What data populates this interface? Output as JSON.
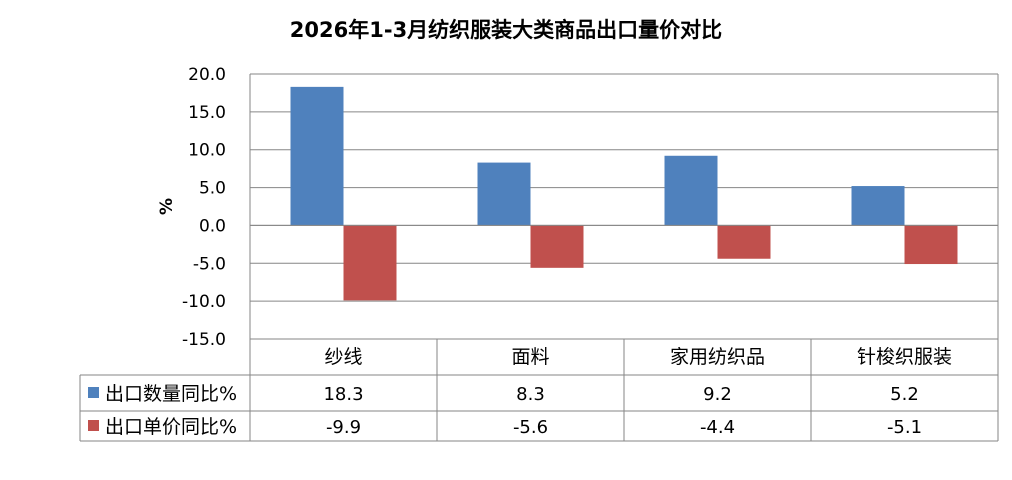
{
  "chart_data": {
    "type": "bar",
    "title": "2026年1-3月纺织服装大类商品出口量价对比",
    "ylabel": "%",
    "ylim": [
      -15,
      20
    ],
    "y_ticks": [
      "20.0",
      "15.0",
      "10.0",
      "5.0",
      "0.0",
      "-5.0",
      "-10.0",
      "-15.0"
    ],
    "grid": true,
    "legend": "data-table",
    "categories": [
      "纱线",
      "面料",
      "家用纺织品",
      "针梭织服装"
    ],
    "series": [
      {
        "name": "出口数量同比%",
        "color": "#4f81bd",
        "values": [
          18.3,
          8.3,
          9.2,
          5.2
        ],
        "labels": [
          "18.3",
          "8.3",
          "9.2",
          "5.2"
        ]
      },
      {
        "name": "出口单价同比%",
        "color": "#c0504d",
        "values": [
          -9.9,
          -5.6,
          -4.4,
          -5.1
        ],
        "labels": [
          "-9.9",
          "-5.6",
          "-4.4",
          "-5.1"
        ]
      }
    ]
  }
}
